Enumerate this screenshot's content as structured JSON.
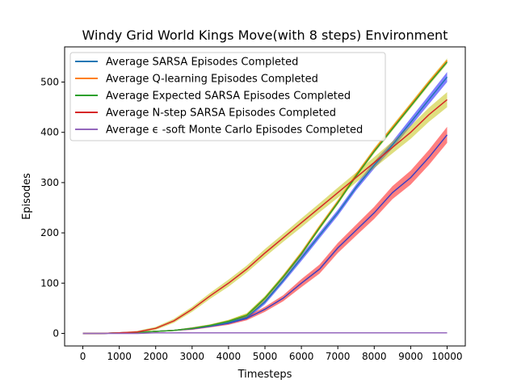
{
  "chart_data": {
    "type": "line",
    "title": "Windy Grid World Kings Move(with 8 steps) Environment",
    "xlabel": "Timesteps",
    "ylabel": "Episodes",
    "xlim": [
      -500,
      10500
    ],
    "ylim": [
      -25,
      570
    ],
    "xticks": [
      0,
      1000,
      2000,
      3000,
      4000,
      5000,
      6000,
      7000,
      8000,
      9000,
      10000
    ],
    "yticks": [
      0,
      100,
      200,
      300,
      400,
      500
    ],
    "grid": false,
    "legend_position": "top-left",
    "x": [
      0,
      500,
      1000,
      1500,
      2000,
      2500,
      3000,
      3500,
      4000,
      4500,
      5000,
      5500,
      6000,
      6500,
      7000,
      7500,
      8000,
      8500,
      9000,
      9500,
      10000
    ],
    "series": [
      {
        "name": "Average SARSA Episodes Completed",
        "color": "#1f77b4",
        "band_color": "#0000ff",
        "values": [
          0,
          0,
          1,
          2,
          4,
          6,
          10,
          15,
          22,
          32,
          63,
          105,
          150,
          195,
          240,
          290,
          335,
          375,
          420,
          465,
          510
        ],
        "band": [
          1,
          1,
          1,
          1,
          1,
          1,
          2,
          2,
          3,
          4,
          5,
          5,
          6,
          6,
          6,
          6,
          7,
          7,
          8,
          9,
          10
        ]
      },
      {
        "name": "Average Q-learning Episodes Completed",
        "color": "#ff7f0e",
        "band_color": "#bfbf00",
        "values": [
          0,
          0,
          1,
          2,
          4,
          6,
          10,
          16,
          24,
          36,
          70,
          113,
          160,
          212,
          262,
          315,
          365,
          410,
          455,
          500,
          543
        ],
        "band": [
          1,
          1,
          1,
          1,
          1,
          1,
          2,
          2,
          3,
          4,
          4,
          4,
          4,
          4,
          4,
          4,
          4,
          4,
          4,
          4,
          4
        ]
      },
      {
        "name": "Average Expected SARSA Episodes Completed",
        "color": "#2ca02c",
        "band_color": "#bfbf00",
        "values": [
          0,
          0,
          1,
          2,
          4,
          6,
          10,
          16,
          24,
          36,
          70,
          112,
          158,
          210,
          260,
          313,
          362,
          407,
          452,
          497,
          540
        ],
        "band": [
          1,
          1,
          1,
          1,
          1,
          1,
          2,
          2,
          3,
          4,
          4,
          4,
          4,
          4,
          4,
          4,
          4,
          4,
          4,
          4,
          4
        ]
      },
      {
        "name": "Average N-step SARSA Episodes Completed",
        "color": "#d62728",
        "band_color": "#bfbf00",
        "values": [
          0,
          0,
          1,
          3,
          10,
          25,
          48,
          75,
          100,
          128,
          160,
          190,
          220,
          250,
          280,
          310,
          340,
          370,
          400,
          435,
          465
        ],
        "band": [
          1,
          1,
          1,
          2,
          3,
          4,
          5,
          6,
          7,
          7,
          8,
          8,
          9,
          9,
          10,
          10,
          11,
          12,
          13,
          14,
          15
        ]
      },
      {
        "name": "Average ϵ -soft Monte Carlo Episodes Completed",
        "color": "#9467bd",
        "band_color": "#9467bd",
        "values": [
          0,
          0,
          0,
          0,
          1,
          1,
          1,
          1,
          1,
          1,
          1,
          1,
          1,
          1,
          1,
          1,
          1,
          1,
          1,
          1,
          1
        ],
        "band": [
          0,
          0,
          0,
          0,
          0,
          0,
          0,
          0,
          0,
          0,
          0,
          0,
          0,
          0,
          0,
          0,
          0,
          0,
          0,
          0,
          0
        ]
      },
      {
        "name": "",
        "color": "#4040c0",
        "band_color": "#ff0000",
        "values": [
          0,
          0,
          1,
          2,
          4,
          6,
          9,
          14,
          20,
          30,
          48,
          70,
          100,
          128,
          170,
          205,
          240,
          280,
          310,
          350,
          395
        ],
        "band": [
          1,
          1,
          1,
          1,
          1,
          1,
          2,
          2,
          3,
          4,
          5,
          6,
          8,
          9,
          10,
          11,
          12,
          13,
          14,
          15,
          16
        ]
      }
    ]
  }
}
